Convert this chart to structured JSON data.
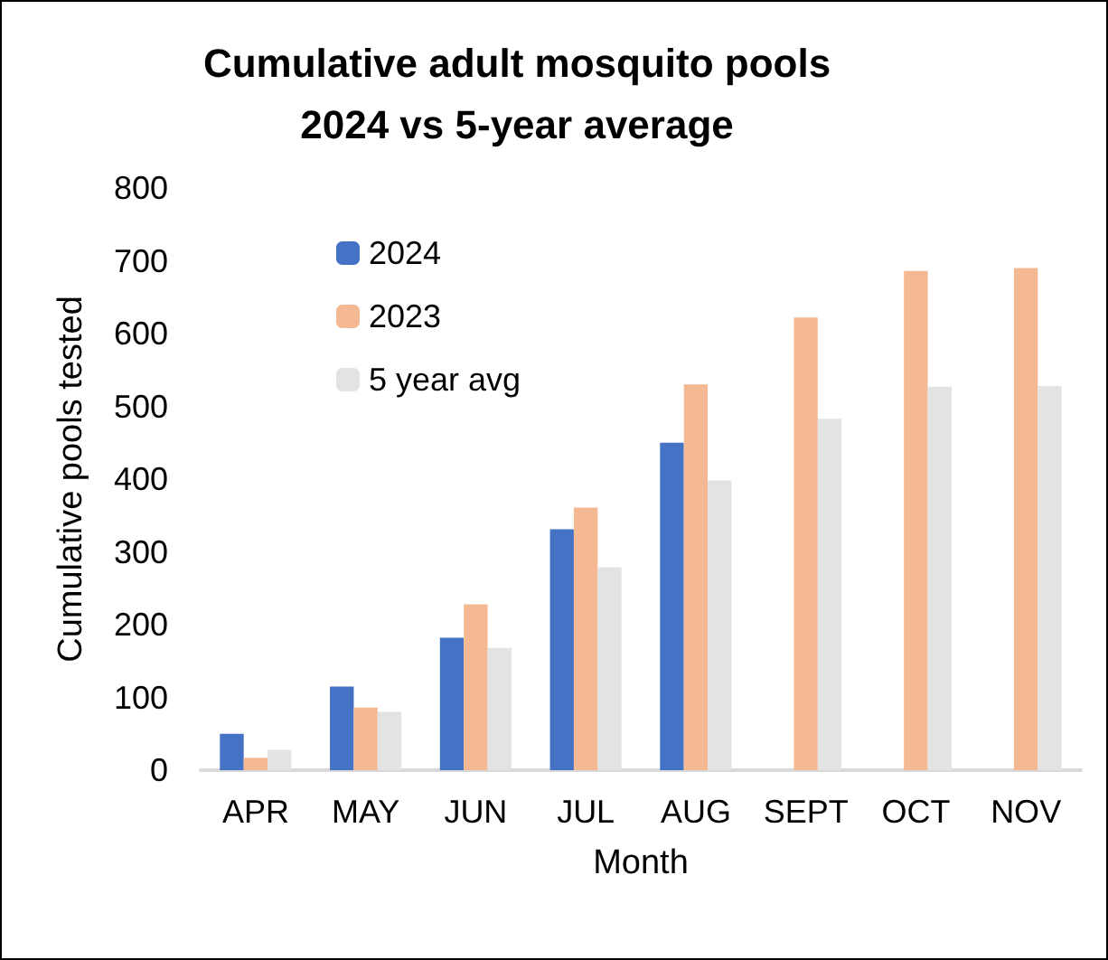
{
  "chart_data": {
    "type": "bar",
    "title": "Cumulative adult mosquito pools\n2024 vs 5-year average",
    "xlabel": "Month",
    "ylabel": "Cumulative pools tested",
    "categories": [
      "APR",
      "MAY",
      "JUN",
      "JUL",
      "AUG",
      "SEPT",
      "OCT",
      "NOV"
    ],
    "series": [
      {
        "name": "2024",
        "color": "#4472c4",
        "values": [
          50,
          115,
          182,
          331,
          450,
          null,
          null,
          null
        ]
      },
      {
        "name": "2023",
        "color": "#f4b993",
        "values": [
          17,
          86,
          228,
          361,
          530,
          622,
          686,
          690
        ]
      },
      {
        "name": "5 year avg",
        "color": "#e3e3e3",
        "values": [
          28,
          80,
          168,
          279,
          398,
          483,
          527,
          528
        ]
      }
    ],
    "ylim": [
      0,
      800
    ],
    "yticks": [
      0,
      100,
      200,
      300,
      400,
      500,
      600,
      700,
      800
    ],
    "grid": false,
    "legend": "top left"
  }
}
